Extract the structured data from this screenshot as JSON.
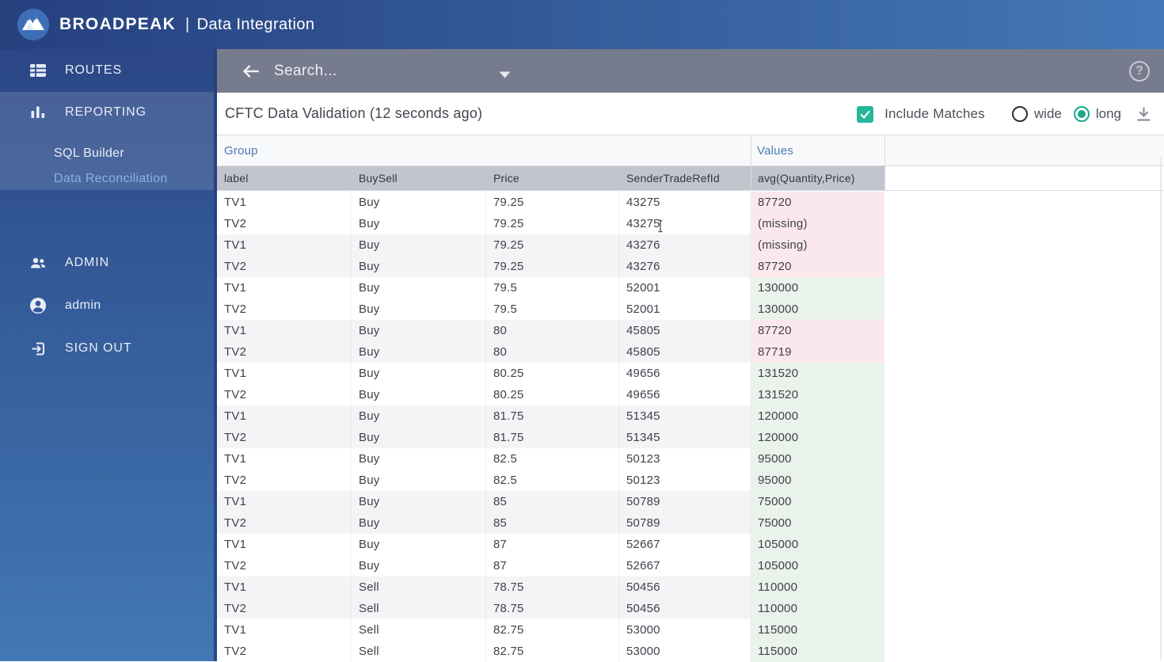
{
  "topbar": {
    "brand_1": "BROAD",
    "brand_2": "PEAK",
    "separator": "|",
    "app_title": "Data Integration"
  },
  "sidebar": {
    "routes_label": "ROUTES",
    "reporting_label": "REPORTING",
    "sql_builder_label": "SQL Builder",
    "data_reconciliation_label": "Data Reconciliation",
    "admin_label": "ADMIN",
    "user_label": "admin",
    "sign_out_label": "SIGN OUT",
    "active_item": "Data Reconciliation"
  },
  "searchbar": {
    "placeholder": "Search...",
    "help_glyph": "?"
  },
  "toolbar": {
    "title": "CFTC Data Validation (12 seconds ago)",
    "include_matches_label": "Include Matches",
    "include_matches_checked": true,
    "radios": [
      {
        "label": "wide",
        "checked": false
      },
      {
        "label": "long",
        "checked": true
      }
    ]
  },
  "table": {
    "group_header_label": "Group",
    "values_header_label": "Values",
    "columns": [
      "label",
      "BuySell",
      "Price",
      "SenderTradeRefId",
      "avg(Quantity,Price)"
    ],
    "rows": [
      {
        "label": "TV1",
        "buy_sell": "Buy",
        "price": "79.25",
        "ref": "43275",
        "value": "87720",
        "status": "mismatch"
      },
      {
        "label": "TV2",
        "buy_sell": "Buy",
        "price": "79.25",
        "ref": "43275",
        "value": "(missing)",
        "status": "mismatch"
      },
      {
        "label": "TV1",
        "buy_sell": "Buy",
        "price": "79.25",
        "ref": "43276",
        "value": "(missing)",
        "status": "mismatch"
      },
      {
        "label": "TV2",
        "buy_sell": "Buy",
        "price": "79.25",
        "ref": "43276",
        "value": "87720",
        "status": "mismatch"
      },
      {
        "label": "TV1",
        "buy_sell": "Buy",
        "price": "79.5",
        "ref": "52001",
        "value": "130000",
        "status": "match"
      },
      {
        "label": "TV2",
        "buy_sell": "Buy",
        "price": "79.5",
        "ref": "52001",
        "value": "130000",
        "status": "match"
      },
      {
        "label": "TV1",
        "buy_sell": "Buy",
        "price": "80",
        "ref": "45805",
        "value": "87720",
        "status": "mismatch"
      },
      {
        "label": "TV2",
        "buy_sell": "Buy",
        "price": "80",
        "ref": "45805",
        "value": "87719",
        "status": "mismatch"
      },
      {
        "label": "TV1",
        "buy_sell": "Buy",
        "price": "80.25",
        "ref": "49656",
        "value": "131520",
        "status": "match"
      },
      {
        "label": "TV2",
        "buy_sell": "Buy",
        "price": "80.25",
        "ref": "49656",
        "value": "131520",
        "status": "match"
      },
      {
        "label": "TV1",
        "buy_sell": "Buy",
        "price": "81.75",
        "ref": "51345",
        "value": "120000",
        "status": "match"
      },
      {
        "label": "TV2",
        "buy_sell": "Buy",
        "price": "81.75",
        "ref": "51345",
        "value": "120000",
        "status": "match"
      },
      {
        "label": "TV1",
        "buy_sell": "Buy",
        "price": "82.5",
        "ref": "50123",
        "value": "95000",
        "status": "match"
      },
      {
        "label": "TV2",
        "buy_sell": "Buy",
        "price": "82.5",
        "ref": "50123",
        "value": "95000",
        "status": "match"
      },
      {
        "label": "TV1",
        "buy_sell": "Buy",
        "price": "85",
        "ref": "50789",
        "value": "75000",
        "status": "match"
      },
      {
        "label": "TV2",
        "buy_sell": "Buy",
        "price": "85",
        "ref": "50789",
        "value": "75000",
        "status": "match"
      },
      {
        "label": "TV1",
        "buy_sell": "Buy",
        "price": "87",
        "ref": "52667",
        "value": "105000",
        "status": "match"
      },
      {
        "label": "TV2",
        "buy_sell": "Buy",
        "price": "87",
        "ref": "52667",
        "value": "105000",
        "status": "match"
      },
      {
        "label": "TV1",
        "buy_sell": "Sell",
        "price": "78.75",
        "ref": "50456",
        "value": "110000",
        "status": "match"
      },
      {
        "label": "TV2",
        "buy_sell": "Sell",
        "price": "78.75",
        "ref": "50456",
        "value": "110000",
        "status": "match"
      },
      {
        "label": "TV1",
        "buy_sell": "Sell",
        "price": "82.75",
        "ref": "53000",
        "value": "115000",
        "status": "match"
      },
      {
        "label": "TV2",
        "buy_sell": "Sell",
        "price": "82.75",
        "ref": "53000",
        "value": "115000",
        "status": "match"
      }
    ]
  },
  "colors": {
    "accent_teal": "#27b69a",
    "radio_selected": "#1ca88f",
    "mismatch_bg": "#fbe8ed",
    "match_bg": "#e9f2eb",
    "active_sidebar_item": "#86b3e4",
    "topbar_gradient": [
      "#26407e",
      "#4478b8"
    ]
  }
}
